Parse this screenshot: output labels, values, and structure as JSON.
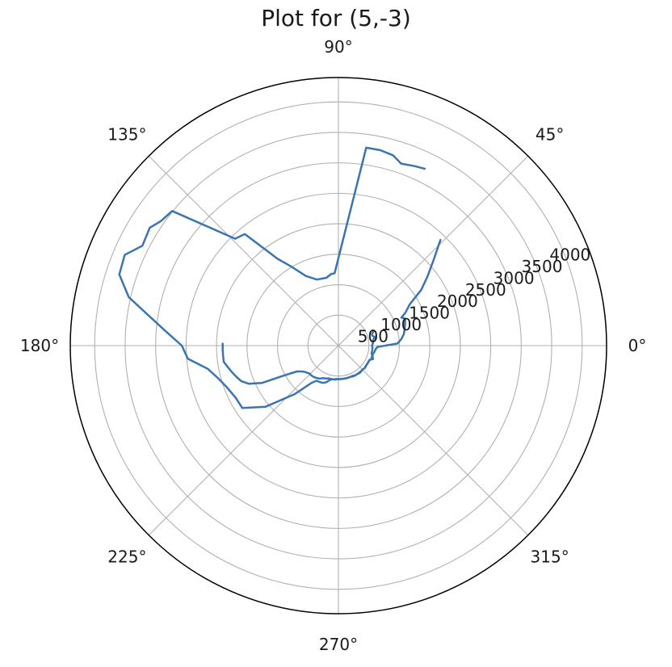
{
  "chart_data": {
    "type": "line",
    "projection": "polar",
    "title": "Plot for (5,-3)",
    "angle_unit": "degrees",
    "angular_ticks": [
      "0°",
      "45°",
      "90°",
      "135°",
      "180°",
      "225°",
      "270°",
      "315°"
    ],
    "radial_ticks": [
      "500",
      "1000",
      "1500",
      "2000",
      "2500",
      "3000",
      "3500",
      "4000"
    ],
    "rlim": [
      0,
      4400
    ],
    "grid": true,
    "series": [
      {
        "color": "#3b75af",
        "theta": [
          46,
          42,
          38,
          34,
          30,
          26,
          24,
          22,
          18,
          14,
          10,
          6,
          2,
          358,
          354,
          350,
          346,
          342,
          338,
          334,
          330,
          326,
          320,
          316,
          312,
          308,
          304,
          300,
          296,
          292,
          288,
          284,
          280,
          276,
          272,
          268,
          264,
          260,
          256,
          252,
          248,
          244,
          238,
          234,
          228,
          220,
          213,
          207,
          200,
          195,
          190,
          185,
          180,
          175,
          167,
          162,
          157,
          153,
          148,
          145,
          141,
          134,
          130,
          125,
          121,
          115,
          108,
          100,
          96,
          93,
          82,
          78,
          74,
          71,
          67,
          64
        ],
        "r": [
          2410,
          2100,
          1860,
          1640,
          1350,
          1220,
          1130,
          1180,
          1150,
          1120,
          1090,
          1040,
          970,
          640,
          610,
          600,
          580,
          580,
          580,
          560,
          560,
          560,
          570,
          560,
          560,
          570,
          560,
          560,
          560,
          550,
          550,
          550,
          550,
          550,
          550,
          550,
          560,
          560,
          580,
          630,
          660,
          670,
          680,
          760,
          1070,
          1560,
          1880,
          1890,
          1960,
          2050,
          2180,
          2480,
          2570,
          2860,
          3530,
          3780,
          3810,
          3610,
          3650,
          3560,
          3510,
          2440,
          2390,
          1740,
          1520,
          1260,
          1140,
          1130,
          1180,
          1190,
          3280,
          3280,
          3250,
          3160,
          3200,
          3230
        ]
      },
      {
        "color": "#3b75af",
        "theta": [
          24,
          22,
          19,
          16,
          13,
          11,
          9,
          7,
          5,
          2,
          0,
          357,
          354,
          350,
          346,
          343,
          341,
          339,
          337,
          335,
          333,
          331,
          329,
          326,
          323,
          320,
          317,
          314,
          311,
          308,
          305,
          302,
          299,
          296,
          293,
          290,
          287,
          284,
          281,
          278,
          275,
          272,
          269,
          266,
          263,
          260,
          257,
          254,
          251,
          248,
          245,
          242,
          239,
          236,
          233,
          230,
          227,
          224,
          221,
          218,
          215,
          212,
          209,
          206,
          203,
          200,
          197,
          194,
          191,
          188,
          185,
          182,
          179
        ],
        "r": [
          620,
          620,
          580,
          580,
          620,
          590,
          580,
          560,
          570,
          560,
          550,
          560,
          560,
          560,
          560,
          590,
          590,
          610,
          580,
          560,
          560,
          560,
          560,
          560,
          560,
          570,
          560,
          560,
          560,
          560,
          560,
          560,
          560,
          550,
          550,
          550,
          550,
          550,
          550,
          550,
          550,
          550,
          550,
          550,
          560,
          560,
          560,
          560,
          570,
          580,
          590,
          610,
          630,
          640,
          650,
          660,
          660,
          660,
          680,
          700,
          740,
          800,
          1000,
          1400,
          1600,
          1700,
          1750,
          1800,
          1850,
          1900,
          1900,
          1900,
          1900
        ]
      }
    ]
  }
}
